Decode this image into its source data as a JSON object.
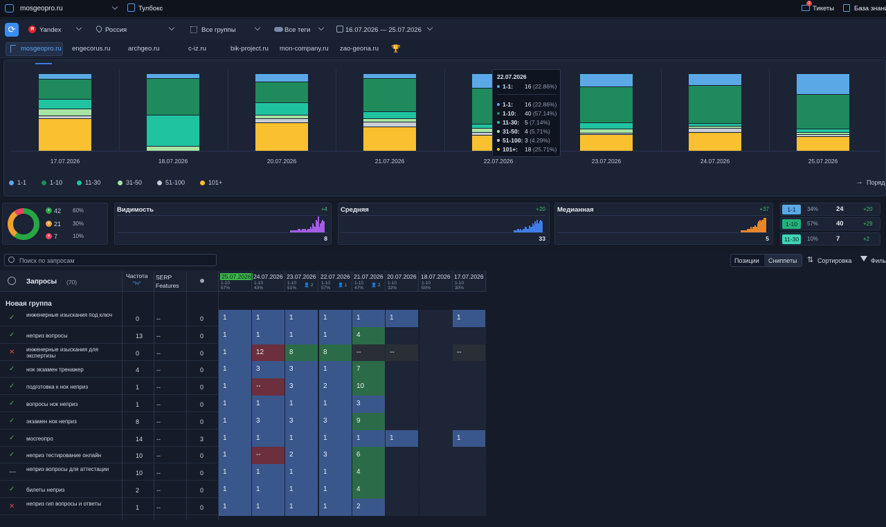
{
  "topbar": {
    "project": "mosgeopro.ru",
    "toolbox": "Тулбокс",
    "tickets": "Тикеты",
    "tickets_badge": "1",
    "knowledge": "База знани"
  },
  "filters": {
    "engine": "Yandex",
    "region": "Россия",
    "groups": "Все группы",
    "tags": "Все теги",
    "dates": "16.07.2026 — 25.07.2026"
  },
  "sites": [
    "mosgeopro.ru",
    "engecorus.ru",
    "archgeo.ru",
    "c-iz.ru",
    "bik-project.ru",
    "mon-company.ru",
    "zao-geona.ru"
  ],
  "chart_data": {
    "type": "bar",
    "stacked": true,
    "categories": [
      "17.07.2026",
      "18.07.2026",
      "20.07.2026",
      "21.07.2026",
      "22.07.2026",
      "23.07.2026",
      "24.07.2026",
      "25.07.2026"
    ],
    "series": [
      {
        "name": "1-1",
        "color": "#5aa9e6",
        "values": [
          6,
          5,
          10,
          5,
          16,
          14,
          13,
          20
        ]
      },
      {
        "name": "1-10",
        "color": "#1f8a5c",
        "values": [
          22,
          40,
          24,
          36,
          40,
          37,
          42,
          33
        ]
      },
      {
        "name": "11-30",
        "color": "#20c3a0",
        "values": [
          10,
          34,
          14,
          7,
          5,
          7,
          3,
          3
        ]
      },
      {
        "name": "31-50",
        "color": "#a7e3a2",
        "values": [
          8,
          5,
          4,
          4,
          4,
          4,
          3,
          2
        ]
      },
      {
        "name": "51-100",
        "color": "#c9ced6",
        "values": [
          3,
          0,
          5,
          5,
          3,
          2,
          4,
          2
        ]
      },
      {
        "name": "101+",
        "color": "#f9c030",
        "values": [
          35,
          0,
          33,
          26,
          18,
          17,
          21,
          14
        ]
      }
    ],
    "legend_position": "bottom-left",
    "grid": false
  },
  "tooltip": {
    "date": "22.07.2026",
    "rows": [
      {
        "k": "1-1:",
        "v": "16",
        "p": "(22.86%)",
        "c": "#5aa9e6"
      },
      {
        "k": "1-1:",
        "v": "16",
        "p": "(22.86%)",
        "c": "#5aa9e6"
      },
      {
        "k": "1-10:",
        "v": "40",
        "p": "(57.14%)",
        "c": "#1f8a5c"
      },
      {
        "k": "11-30:",
        "v": "5",
        "p": "(7.14%)",
        "c": "#20c3a0"
      },
      {
        "k": "31-50:",
        "v": "4",
        "p": "(5.71%)",
        "c": "#a7e3a2"
      },
      {
        "k": "51-100:",
        "v": "3",
        "p": "(4.29%)",
        "c": "#c9ced6"
      },
      {
        "k": "101+:",
        "v": "18",
        "p": "(25.71%)",
        "c": "#f9c030"
      }
    ]
  },
  "order_btn": "Поряд",
  "donut": {
    "up": "42",
    "up_pct": "60%",
    "mid": "21",
    "mid_pct": "30%",
    "down": "7",
    "down_pct": "10%"
  },
  "metrics": [
    {
      "label": "Видимость",
      "delta": "+4",
      "value": "8",
      "color": "#a45ee5"
    },
    {
      "label": "Средняя",
      "delta": "+20",
      "value": "33",
      "color": "#3f7ee8"
    },
    {
      "label": "Медианная",
      "delta": "+37",
      "value": "5",
      "color": "#e8862a"
    }
  ],
  "ranges": [
    {
      "label": "1-1",
      "pct": "34%",
      "count": "24",
      "delta": "+20",
      "color": "#5aa9e6"
    },
    {
      "label": "1-10",
      "pct": "57%",
      "count": "40",
      "delta": "+29",
      "color": "#22b37a"
    },
    {
      "label": "11-30",
      "pct": "10%",
      "count": "7",
      "delta": "+2",
      "color": "#3fd5b4"
    }
  ],
  "search_placeholder": "Поиск по запросам",
  "toggles": {
    "positions": "Позиции",
    "snippets": "Сниппеты",
    "sort": "Сортировка",
    "filter": "Филь"
  },
  "table": {
    "q_header": "Запросы",
    "q_count": "(70)",
    "freq_header": "Частота",
    "freq_sub": "\"!ч\"",
    "serp_header": "SERP Features",
    "group": "Новая группа",
    "dates": [
      {
        "d": "25.07.2026",
        "r": "1-10",
        "p": "57%"
      },
      {
        "d": "24.07.2026",
        "r": "1-10",
        "p": "43%"
      },
      {
        "d": "23.07.2026",
        "r": "1-10",
        "p": "51%",
        "x": "2"
      },
      {
        "d": "22.07.2026",
        "r": "1-10",
        "p": "57%",
        "x": "1"
      },
      {
        "d": "21.07.2026",
        "r": "1-10",
        "p": "47%",
        "x": "2"
      },
      {
        "d": "20.07.2026",
        "r": "1-10",
        "p": "32%"
      },
      {
        "d": "18.07.2026",
        "r": "1-10",
        "p": "50%"
      },
      {
        "d": "17.07.2026",
        "r": "1-10",
        "p": "30%"
      }
    ],
    "rows": [
      {
        "s": "ok",
        "q": "инженерные изыскания под ключ",
        "f": "0",
        "serp": "--",
        "u": "0",
        "c": [
          "1",
          "1",
          "1",
          "1",
          "1",
          "1",
          "",
          "1"
        ],
        "k": [
          "b",
          "b",
          "b",
          "b",
          "b",
          "b",
          "e",
          "b"
        ]
      },
      {
        "s": "ok",
        "q": "неприз вопросы",
        "f": "13",
        "serp": "--",
        "u": "0",
        "c": [
          "1",
          "1",
          "1",
          "1",
          "4",
          "",
          "",
          ""
        ],
        "k": [
          "b",
          "b",
          "b",
          "b",
          "g",
          "e",
          "e",
          "e"
        ]
      },
      {
        "s": "x",
        "q": "инженерные изыскания для экспертизы",
        "f": "0",
        "serp": "--",
        "u": "0",
        "c": [
          "1",
          "12",
          "8",
          "8",
          "--",
          "--",
          "",
          "--"
        ],
        "k": [
          "b",
          "r",
          "g",
          "g",
          "d",
          "d",
          "e",
          "d"
        ]
      },
      {
        "s": "ok",
        "q": "нок экзамен тренажер",
        "f": "4",
        "serp": "--",
        "u": "0",
        "c": [
          "1",
          "3",
          "3",
          "1",
          "7",
          "",
          "",
          ""
        ],
        "k": [
          "b",
          "b",
          "b",
          "b",
          "g",
          "e",
          "e",
          "e"
        ]
      },
      {
        "s": "ok",
        "q": "подготовка к нок неприз",
        "f": "1",
        "serp": "--",
        "u": "0",
        "c": [
          "1",
          "--",
          "3",
          "2",
          "10",
          "",
          "",
          ""
        ],
        "k": [
          "b",
          "r",
          "b",
          "b",
          "g",
          "e",
          "e",
          "e"
        ]
      },
      {
        "s": "ok",
        "q": "вопросы нок неприз",
        "f": "1",
        "serp": "--",
        "u": "0",
        "c": [
          "1",
          "1",
          "1",
          "1",
          "3",
          "",
          "",
          ""
        ],
        "k": [
          "b",
          "b",
          "b",
          "b",
          "b",
          "e",
          "e",
          "e"
        ]
      },
      {
        "s": "ok",
        "q": "экзамен нок неприз",
        "f": "8",
        "serp": "--",
        "u": "0",
        "c": [
          "1",
          "3",
          "3",
          "3",
          "9",
          "",
          "",
          ""
        ],
        "k": [
          "b",
          "b",
          "b",
          "b",
          "g",
          "e",
          "e",
          "e"
        ]
      },
      {
        "s": "ok",
        "q": "мосгеопро",
        "f": "14",
        "serp": "--",
        "u": "3",
        "c": [
          "1",
          "1",
          "1",
          "1",
          "1",
          "1",
          "",
          "1"
        ],
        "k": [
          "b",
          "b",
          "b",
          "b",
          "b",
          "b",
          "e",
          "b"
        ]
      },
      {
        "s": "ok",
        "q": "неприз тестирование онлайн",
        "f": "10",
        "serp": "--",
        "u": "0",
        "c": [
          "1",
          "--",
          "2",
          "3",
          "6",
          "",
          "",
          ""
        ],
        "k": [
          "b",
          "r",
          "b",
          "b",
          "g",
          "e",
          "e",
          "e"
        ]
      },
      {
        "s": "dash",
        "q": "неприз вопросы для аттестации",
        "f": "10",
        "serp": "--",
        "u": "0",
        "c": [
          "1",
          "1",
          "1",
          "1",
          "4",
          "",
          "",
          ""
        ],
        "k": [
          "b",
          "b",
          "b",
          "b",
          "g",
          "e",
          "e",
          "e"
        ]
      },
      {
        "s": "ok",
        "q": "билеты неприз",
        "f": "2",
        "serp": "--",
        "u": "0",
        "c": [
          "1",
          "1",
          "1",
          "1",
          "4",
          "",
          "",
          ""
        ],
        "k": [
          "b",
          "b",
          "b",
          "b",
          "g",
          "e",
          "e",
          "e"
        ]
      },
      {
        "s": "x",
        "q": "неприз гип вопросы и ответы",
        "f": "1",
        "serp": "--",
        "u": "0",
        "c": [
          "1",
          "1",
          "1",
          "1",
          "2",
          "",
          "",
          ""
        ],
        "k": [
          "b",
          "b",
          "b",
          "b",
          "b",
          "e",
          "e",
          "e"
        ]
      }
    ]
  }
}
